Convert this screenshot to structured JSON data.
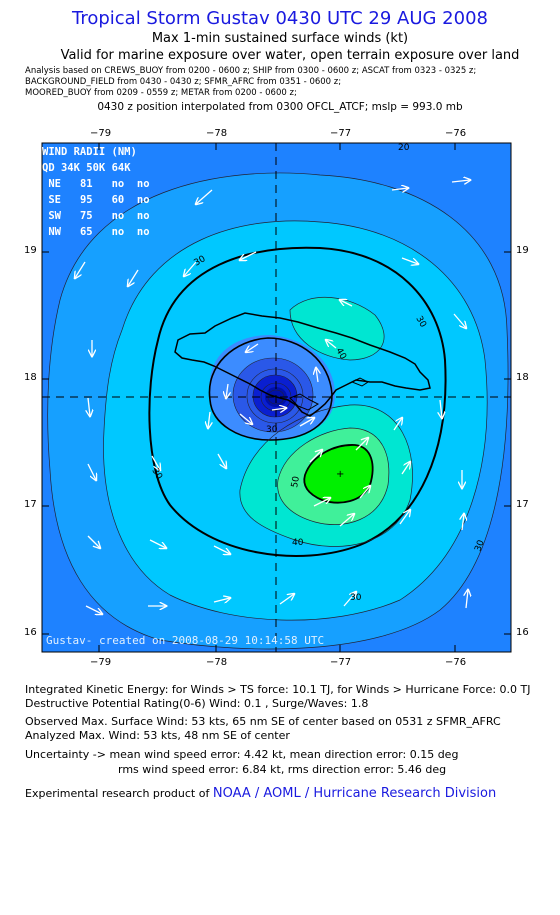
{
  "header": {
    "title": "Tropical Storm Gustav 0430 UTC 29 AUG 2008",
    "subtitle1": "Max 1-min sustained surface winds (kt)",
    "subtitle2": "Valid for marine exposure over water, open terrain exposure over land",
    "analysis_lines": [
      "Analysis based on  CREWS_BUOY from 0200 - 0600 z;  SHIP from 0300 - 0600 z;  ASCAT from 0323 - 0325 z;",
      "BACKGROUND_FIELD from 0430 - 0430 z;  SFMR_AFRC from 0351 - 0600 z;",
      "MOORED_BUOY from 0209 - 0559 z;  METAR from 0200 - 0600 z;"
    ],
    "position_line": "0430 z position interpolated from 0300 OFCL_ATCF; mslp = 993.0 mb"
  },
  "map": {
    "lon_ticks": [
      "−79",
      "−78",
      "−77",
      "−76"
    ],
    "lat_ticks": [
      "19",
      "18",
      "17",
      "16"
    ],
    "contour_labels": [
      "20",
      "30",
      "30",
      "30",
      "30",
      "30",
      "40",
      "40",
      "50",
      "30"
    ],
    "credit": "Gustav-  created on 2008-08-29 10:14:58 UTC",
    "colors": {
      "outer": "#1e82ff",
      "band20": "#16a0ff",
      "band30": "#00c8ff",
      "band40": "#00e6d2",
      "band50": "#40f09a",
      "core": "#00f000",
      "eye_dark": "#0a1fd0",
      "eye_mid": "#2a58e8",
      "eye_light": "#3c8cff"
    }
  },
  "wind_radii": {
    "header": [
      "WIND RADII (NM)"
    ],
    "columns": [
      "QD",
      "34K",
      "50K",
      "64K"
    ],
    "rows": [
      {
        "qd": "NE",
        "k34": "81",
        "k50": "no",
        "k64": "no"
      },
      {
        "qd": "SE",
        "k34": "95",
        "k50": "60",
        "k64": "no"
      },
      {
        "qd": "SW",
        "k34": "75",
        "k50": "no",
        "k64": "no"
      },
      {
        "qd": "NW",
        "k34": "65",
        "k50": "no",
        "k64": "no"
      }
    ]
  },
  "stats": {
    "ike": "Integrated Kinetic Energy:  for Winds > TS force: 10.1 TJ,  for Winds > Hurricane Force: 0.0 TJ",
    "dpr": "Destructive Potential Rating(0-6)   Wind: 0.1 , Surge/Waves: 1.8",
    "obs_max": "Observed Max. Surface Wind: 53 kts, 65 nm SE of center based on 0531 z SFMR_AFRC",
    "ana_max": "Analyzed Max. Wind: 53 kts, 48 nm SE of center",
    "unc1": "Uncertainty -> mean wind speed error: 4.42 kt,   mean direction error: 0.15 deg",
    "unc2": "rms wind speed error: 6.84 kt,   rms direction error: 5.46 deg"
  },
  "footer": {
    "prefix": "Experimental research product of",
    "org": "NOAA / AOML / Hurricane Research Division"
  }
}
